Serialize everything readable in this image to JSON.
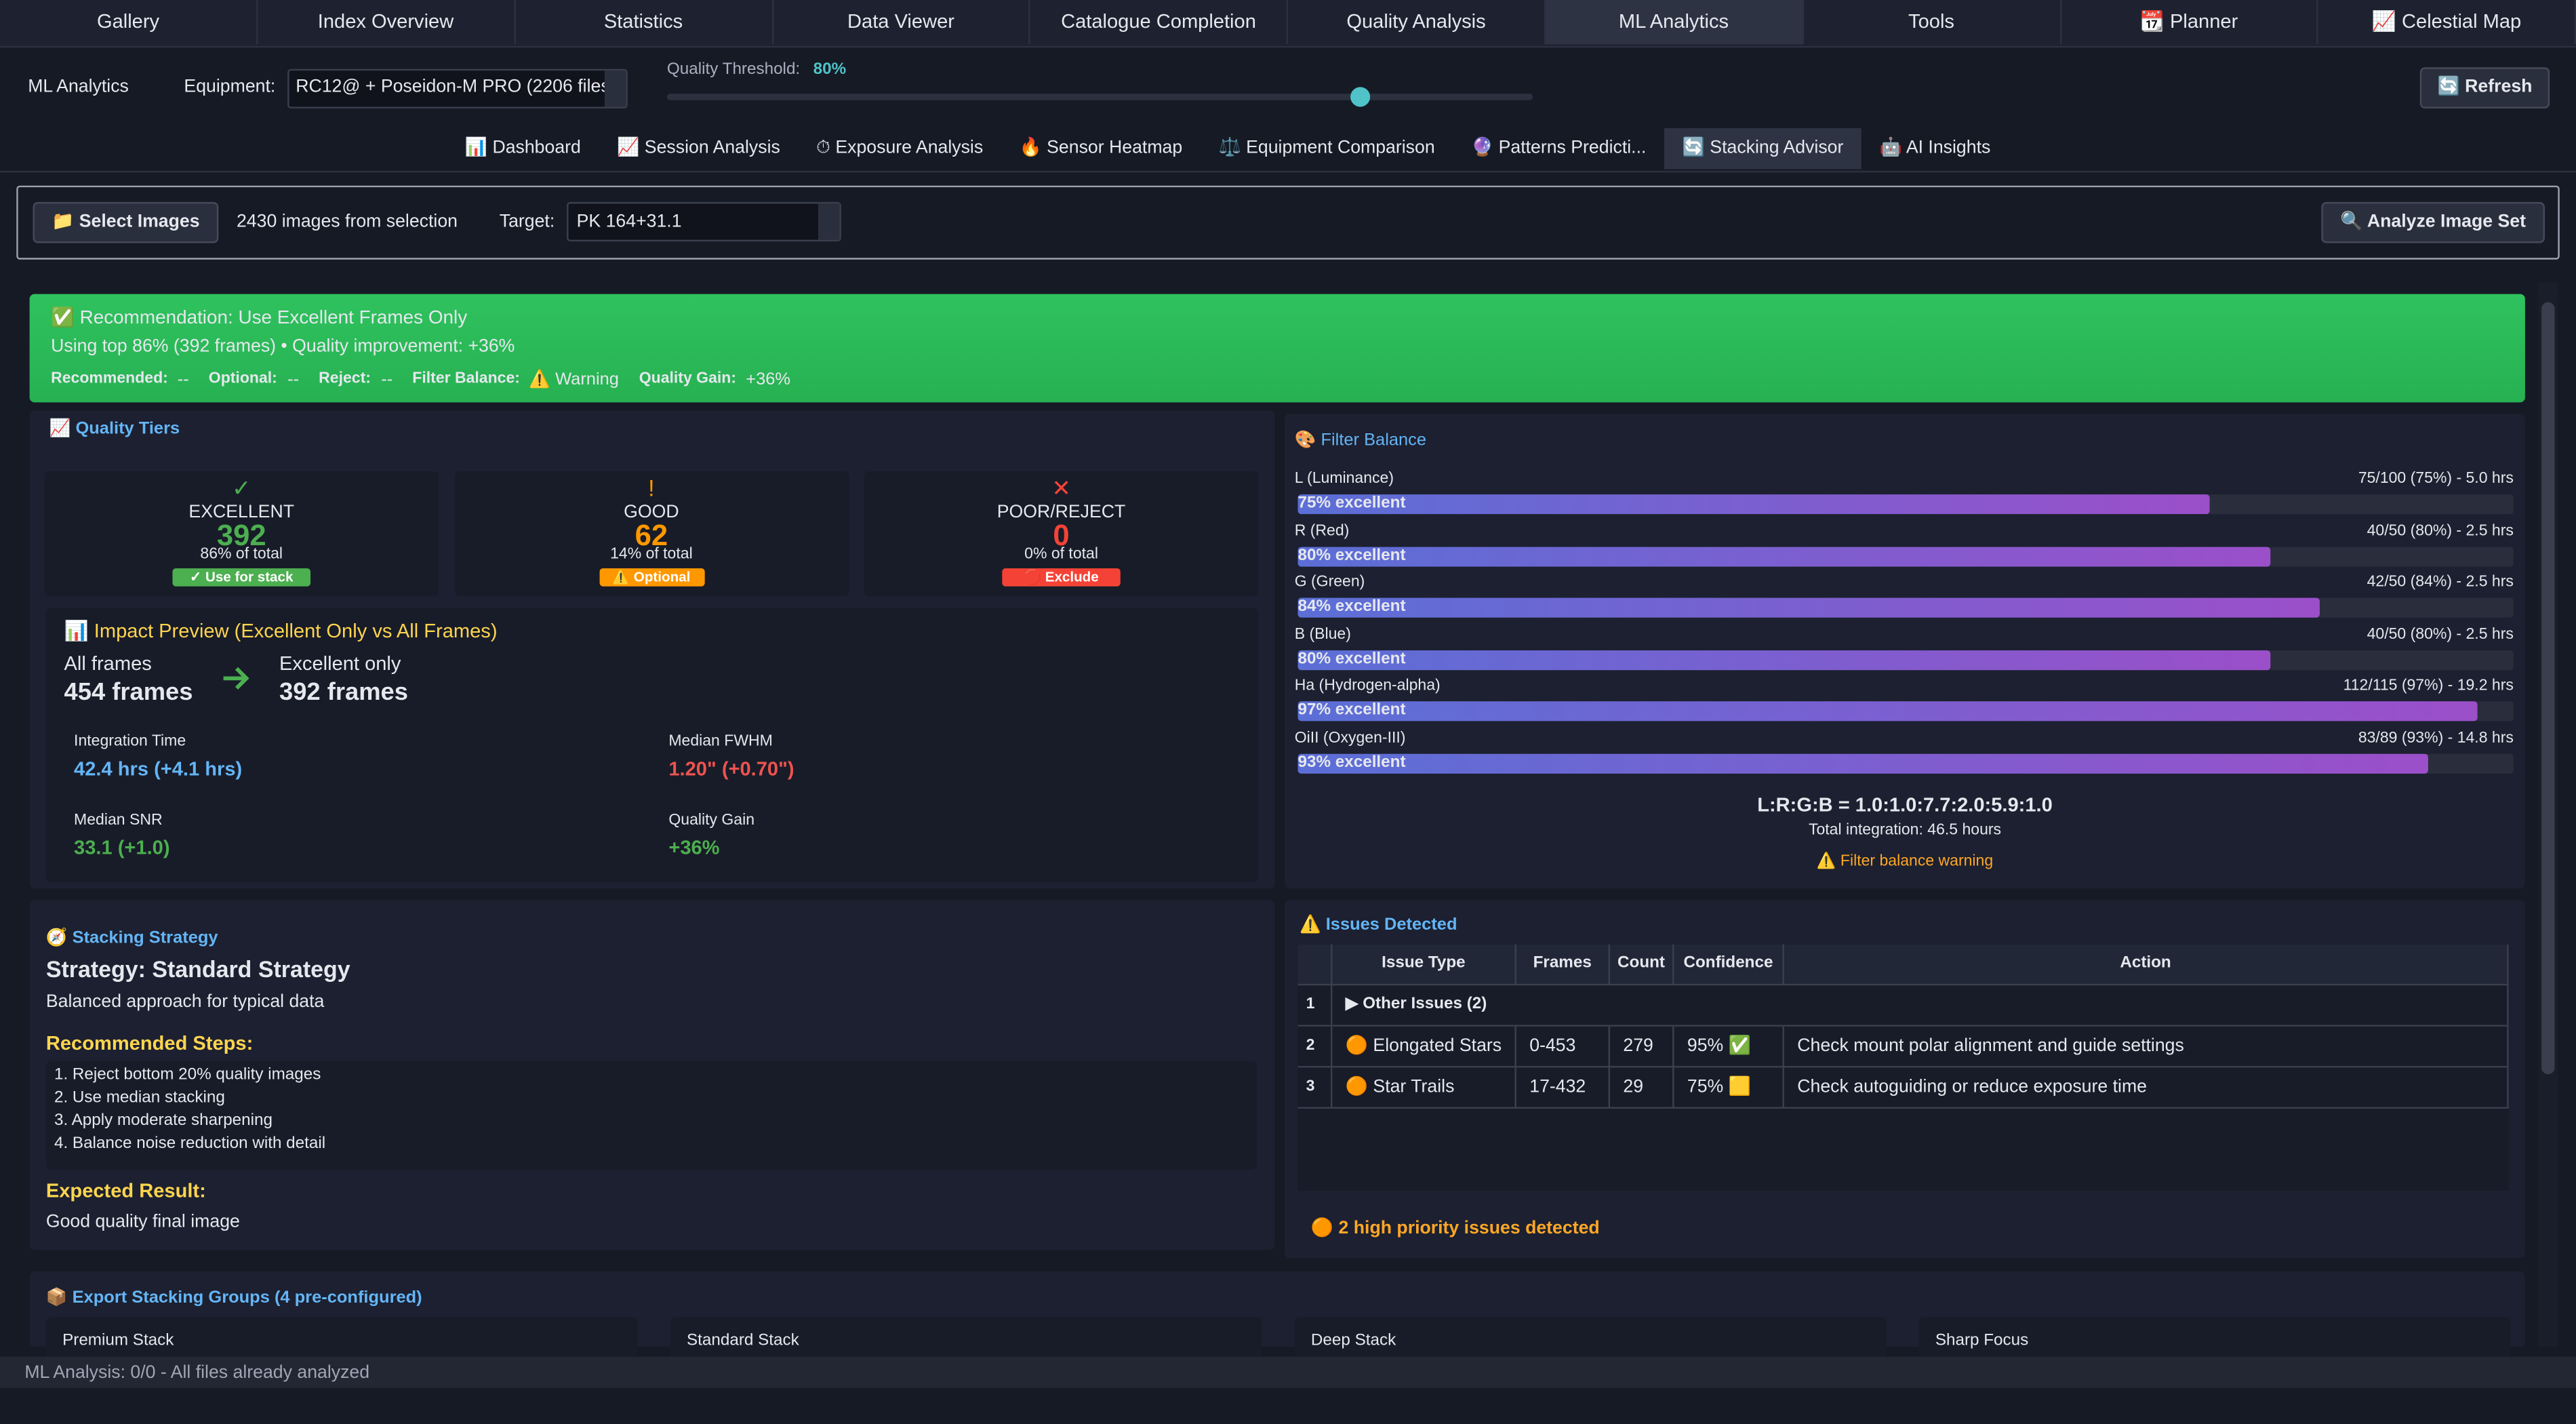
{
  "nav": {
    "tabs": [
      "Gallery",
      "Index  Overview",
      "Statistics",
      "Data Viewer",
      "Catalogue Completion",
      "Quality Analysis",
      "ML Analytics",
      "Tools",
      "📆 Planner",
      "📈 Celestial Map"
    ],
    "active_tab": 6
  },
  "toolbar": {
    "title": "ML Analytics",
    "equipment_label": "Equipment:",
    "equipment": "RC12@ + Poseidon-M PRO (2206 files",
    "threshold_label": "Quality Threshold:",
    "threshold": {
      "value": 80,
      "label": "80%",
      "range": [
        0,
        100
      ]
    },
    "refresh": "🔄 Refresh"
  },
  "sub_tabs": {
    "tabs": [
      "📊 Dashboard",
      "📈 Session Analysis",
      "⏱ Exposure Analysis",
      "🔥 Sensor Heatmap",
      "⚖️ Equipment Comparison",
      "🔮 Patterns  Predicti...",
      "🔄 Stacking Advisor",
      "🤖 AI Insights"
    ],
    "active_tab": 6
  },
  "selection": {
    "button": "📁 Select Images",
    "count": "2430 images from selection",
    "target_label": "Target:",
    "target": "PK 164+31.1",
    "analyze": "🔍 Analyze Image Set"
  },
  "recommendation": {
    "title": "✅ Recommendation: Use Excellent Frames Only",
    "detail": "Using top 86% (392 frames) • Quality improvement: +36%",
    "fields": [
      {
        "label": "Recommended:",
        "value": "--"
      },
      {
        "label": "Optional:",
        "value": "--"
      },
      {
        "label": "Reject:",
        "value": "--"
      },
      {
        "label": "Filter Balance:",
        "value": "⚠️ Warning"
      },
      {
        "label": "Quality Gain:",
        "value": "+36%"
      }
    ]
  },
  "quality_tiers": {
    "title": "📈 Quality Tiers",
    "tiers": [
      {
        "icon": "✓",
        "name": "EXCELLENT",
        "count": "392",
        "share": "86% of total",
        "badge": "✓ Use for stack",
        "color": "#4caf50"
      },
      {
        "icon": "!",
        "name": "GOOD",
        "count": "62",
        "share": "14% of total",
        "badge": "⚠️ Optional",
        "color": "#ff9800"
      },
      {
        "icon": "✕",
        "name": "POOR/REJECT",
        "count": "0",
        "share": "0% of total",
        "badge": "🛑 Exclude",
        "color": "#f44336"
      }
    ]
  },
  "impact": {
    "title": "📊 Impact Preview (Excellent Only vs All Frames)",
    "from_label": "All frames",
    "from_value": "454 frames",
    "to_label": "Excellent only",
    "to_value": "392 frames",
    "metrics": [
      {
        "label": "Integration Time",
        "value": "42.4 hrs (+4.1 hrs)",
        "color": "#64b5f6"
      },
      {
        "label": "Median FWHM",
        "value": "1.20\" (+0.70\")",
        "color": "#ef5350"
      },
      {
        "label": "Median SNR",
        "value": "33.1 (+1.0)",
        "color": "#4caf50"
      },
      {
        "label": "Quality Gain",
        "value": "+36%",
        "color": "#4caf50"
      }
    ]
  },
  "filter_balance": {
    "title": "🎨 Filter Balance",
    "filters": [
      {
        "name": "L (Luminance)",
        "stats": "75/100 (75%) - 5.0 hrs",
        "value": 75,
        "value_label": "75% excellent"
      },
      {
        "name": "R (Red)",
        "stats": "40/50 (80%) - 2.5 hrs",
        "value": 80,
        "value_label": "80% excellent"
      },
      {
        "name": "G (Green)",
        "stats": "42/50 (84%) - 2.5 hrs",
        "value": 84,
        "value_label": "84% excellent"
      },
      {
        "name": "B (Blue)",
        "stats": "40/50 (80%) - 2.5 hrs",
        "value": 80,
        "value_label": "80% excellent"
      },
      {
        "name": "Ha (Hydrogen-alpha)",
        "stats": "112/115 (97%) - 19.2 hrs",
        "value": 97,
        "value_label": "97% excellent"
      },
      {
        "name": "OiII (Oxygen-III)",
        "stats": "83/89 (93%) - 14.8 hrs",
        "value": 93,
        "value_label": "93% excellent"
      }
    ],
    "range": [
      0,
      100
    ],
    "ratio": "L:R:G:B = 1.0:1.0:7.7:2.0:5.9:1.0",
    "total": "Total integration: 46.5 hours",
    "warning": "⚠️ Filter balance warning"
  },
  "strategy": {
    "title": "🧭 Stacking Strategy",
    "name": "Strategy: Standard Strategy",
    "description": "Balanced approach for typical data",
    "steps_title": "Recommended Steps:",
    "steps": [
      "1. Reject bottom 20% quality images",
      "2. Use median stacking",
      "3. Apply moderate sharpening",
      "4. Balance noise reduction with detail"
    ],
    "result_title": "Expected Result:",
    "result": "Good quality final image"
  },
  "issues": {
    "title": "⚠️ Issues Detected",
    "columns": [
      "Issue Type",
      "Frames",
      "Count",
      "Confidence",
      "Action"
    ],
    "group": {
      "index": "1",
      "label": "▶ Other Issues (2)"
    },
    "rows": [
      [
        "2",
        "🟠 Elongated Stars",
        "0-453",
        "279",
        "95% ✅",
        "Check mount polar alignment and guide settings"
      ],
      [
        "3",
        "🟠 Star Trails",
        "17-432",
        "29",
        "75% 🟨",
        "Check autoguiding or reduce exposure time"
      ]
    ],
    "summary": "🟠 2 high priority issues detected"
  },
  "export": {
    "title": "📦 Export Stacking Groups (4 pre-configured)",
    "groups": [
      "Premium Stack",
      "Standard Stack",
      "Deep Stack",
      "Sharp Focus"
    ]
  },
  "status": "ML Analysis: 0/0 - All files already analyzed"
}
